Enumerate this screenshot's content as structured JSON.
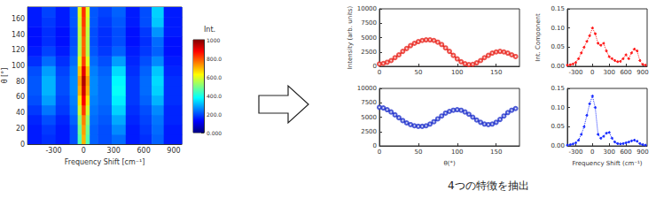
{
  "chart_data": [
    {
      "type": "heatmap",
      "xlabel": "Frequency Shift [cm⁻¹]",
      "ylabel": "θ [°]",
      "x_bins": [
        -560,
        -420,
        -280,
        -140,
        -60,
        -20,
        20,
        60,
        140,
        280,
        420,
        560,
        680,
        800,
        980
      ],
      "y_bins": [
        0,
        12.5,
        25,
        37.5,
        50,
        62.5,
        75,
        87.5,
        100,
        112.5,
        125,
        137.5,
        150,
        162.5,
        175
      ],
      "cells": [
        [
          150,
          170,
          150,
          200,
          450,
          700,
          450,
          220,
          200,
          230,
          150,
          170,
          220,
          150
        ],
        [
          150,
          180,
          150,
          200,
          480,
          720,
          480,
          220,
          200,
          260,
          150,
          180,
          230,
          150
        ],
        [
          160,
          200,
          160,
          220,
          520,
          750,
          520,
          230,
          210,
          290,
          160,
          190,
          240,
          160
        ],
        [
          180,
          240,
          180,
          240,
          580,
          820,
          580,
          240,
          220,
          330,
          170,
          200,
          260,
          160
        ],
        [
          200,
          280,
          190,
          250,
          650,
          880,
          650,
          250,
          230,
          360,
          180,
          220,
          300,
          170
        ],
        [
          210,
          300,
          200,
          260,
          700,
          920,
          700,
          260,
          230,
          380,
          180,
          230,
          330,
          170
        ],
        [
          210,
          300,
          200,
          260,
          720,
          950,
          720,
          260,
          230,
          370,
          180,
          230,
          340,
          170
        ],
        [
          200,
          280,
          190,
          250,
          680,
          900,
          680,
          250,
          220,
          340,
          170,
          220,
          320,
          160
        ],
        [
          170,
          230,
          170,
          230,
          600,
          820,
          600,
          230,
          200,
          280,
          160,
          200,
          260,
          150
        ],
        [
          150,
          190,
          150,
          210,
          550,
          780,
          550,
          210,
          180,
          220,
          150,
          180,
          220,
          140
        ],
        [
          140,
          170,
          140,
          200,
          550,
          780,
          550,
          200,
          170,
          200,
          140,
          170,
          230,
          140
        ],
        [
          140,
          170,
          140,
          200,
          560,
          800,
          560,
          200,
          170,
          200,
          140,
          180,
          270,
          150
        ],
        [
          150,
          180,
          150,
          210,
          580,
          820,
          580,
          210,
          180,
          210,
          150,
          200,
          320,
          150
        ],
        [
          150,
          190,
          150,
          210,
          600,
          830,
          600,
          210,
          190,
          220,
          150,
          200,
          330,
          150
        ]
      ],
      "xlim": [
        -560,
        980
      ],
      "xticks": [
        -300,
        0,
        300,
        600,
        900
      ],
      "ylim": [
        0,
        175
      ],
      "yticks": [
        0,
        20,
        40,
        60,
        80,
        100,
        120,
        140,
        160
      ],
      "colorbar": {
        "title": "Int.",
        "range": [
          0,
          1000
        ],
        "ticks": [
          {
            "value": 0,
            "label": "0.000"
          },
          {
            "value": 200,
            "label": "200.0"
          },
          {
            "value": 400,
            "label": "400.0"
          },
          {
            "value": 600,
            "label": "600.0"
          },
          {
            "value": 800,
            "label": "800.0"
          },
          1000
        ]
      },
      "grid": false
    },
    {
      "type": "line",
      "ylabel": "Intensity (arb. units)",
      "x": [
        0,
        5,
        10,
        15,
        20,
        25,
        30,
        35,
        40,
        45,
        50,
        55,
        60,
        65,
        70,
        75,
        80,
        85,
        90,
        95,
        100,
        105,
        110,
        115,
        120,
        125,
        130,
        135,
        140,
        145,
        150,
        155,
        160,
        165,
        170,
        175
      ],
      "series": [
        {
          "type": "scatter",
          "marker": "emptyCircle",
          "color": "#e8271f",
          "values": [
            400,
            500,
            700,
            1000,
            1500,
            2000,
            2600,
            3100,
            3600,
            4000,
            4300,
            4500,
            4600,
            4600,
            4500,
            4200,
            3800,
            3200,
            2600,
            1900,
            1300,
            800,
            450,
            300,
            350,
            600,
            1000,
            1500,
            1900,
            2300,
            2500,
            2600,
            2500,
            2300,
            2000,
            1700
          ]
        },
        {
          "type": "line",
          "line_style": "solid",
          "color": "#e8271f",
          "values": [
            380,
            480,
            690,
            1020,
            1480,
            2020,
            2580,
            3120,
            3600,
            4010,
            4300,
            4510,
            4600,
            4590,
            4480,
            4210,
            3790,
            3220,
            2590,
            1920,
            1290,
            790,
            440,
            310,
            360,
            610,
            1010,
            1490,
            1910,
            2290,
            2510,
            2590,
            2510,
            2290,
            2010,
            1690
          ]
        }
      ],
      "xlim": [
        0,
        180
      ],
      "xticks": [
        0,
        50,
        100,
        150
      ],
      "ylim": [
        0,
        10000
      ],
      "yticks": [
        0,
        2500,
        5000,
        7500,
        10000
      ],
      "grid": false
    },
    {
      "type": "line",
      "xlabel": "θ(°)",
      "x": [
        0,
        5,
        10,
        15,
        20,
        25,
        30,
        35,
        40,
        45,
        50,
        55,
        60,
        65,
        70,
        75,
        80,
        85,
        90,
        95,
        100,
        105,
        110,
        115,
        120,
        125,
        130,
        135,
        140,
        145,
        150,
        155,
        160,
        165,
        170,
        175
      ],
      "series": [
        {
          "type": "scatter",
          "marker": "emptyCircle",
          "color": "#2233cc",
          "values": [
            6700,
            6600,
            6300,
            5900,
            5400,
            4900,
            4400,
            4000,
            3700,
            3500,
            3400,
            3400,
            3500,
            3800,
            4200,
            4700,
            5200,
            5700,
            6000,
            6200,
            6300,
            6200,
            5900,
            5500,
            5000,
            4500,
            4100,
            3800,
            3700,
            3800,
            4100,
            4600,
            5200,
            5800,
            6200,
            6500
          ]
        },
        {
          "type": "line",
          "line_style": "solid",
          "color": "#2233cc",
          "values": [
            6680,
            6580,
            6310,
            5910,
            5410,
            4890,
            4410,
            3990,
            3690,
            3490,
            3390,
            3390,
            3510,
            3790,
            4210,
            4690,
            5210,
            5690,
            6010,
            6210,
            6290,
            6190,
            5910,
            5490,
            5010,
            4510,
            4090,
            3810,
            3710,
            3810,
            4110,
            4610,
            5190,
            5790,
            6210,
            6490
          ]
        }
      ],
      "xlim": [
        0,
        180
      ],
      "xticks": [
        0,
        50,
        100,
        150
      ],
      "ylim": [
        0,
        10000
      ],
      "yticks": [
        0,
        2500,
        5000,
        7500,
        10000
      ],
      "grid": false
    },
    {
      "type": "line",
      "ylabel": "Int. Component",
      "x": [
        -450,
        -400,
        -350,
        -300,
        -250,
        -200,
        -150,
        -100,
        -50,
        0,
        50,
        100,
        150,
        200,
        250,
        300,
        350,
        400,
        450,
        500,
        550,
        600,
        650,
        700,
        750,
        800,
        850,
        900,
        950
      ],
      "series": [
        {
          "type": "line",
          "marker": "circle",
          "line_style": "dotted",
          "color": "#ff1a1a",
          "values": [
            0.003,
            0.004,
            0.006,
            0.01,
            0.02,
            0.035,
            0.05,
            0.065,
            0.08,
            0.1,
            0.085,
            0.06,
            0.055,
            0.06,
            0.04,
            0.025,
            0.02,
            0.015,
            0.012,
            0.013,
            0.02,
            0.03,
            0.02,
            0.035,
            0.045,
            0.04,
            0.015,
            0.005,
            0.003
          ]
        }
      ],
      "xlim": [
        -450,
        980
      ],
      "xticks": [
        -300,
        0,
        300,
        600,
        900
      ],
      "ylim": [
        0,
        0.15
      ],
      "yticks": [
        {
          "value": 0,
          "label": "0.00"
        },
        0.05,
        {
          "value": 0.1,
          "label": "0.10"
        },
        0.15
      ],
      "grid": false
    },
    {
      "type": "line",
      "xlabel": "Frequency Shift (cm⁻¹)",
      "x": [
        -450,
        -400,
        -350,
        -300,
        -250,
        -200,
        -150,
        -100,
        -50,
        0,
        50,
        100,
        150,
        200,
        250,
        300,
        350,
        400,
        450,
        500,
        550,
        600,
        650,
        700,
        750,
        800,
        850,
        900,
        950
      ],
      "series": [
        {
          "type": "line",
          "marker": "circle",
          "line_style": "dotted",
          "color": "#1a2eff",
          "values": [
            0.002,
            0.003,
            0.005,
            0.008,
            0.015,
            0.03,
            0.05,
            0.08,
            0.11,
            0.13,
            0.1,
            0.03,
            0.02,
            0.025,
            0.033,
            0.035,
            0.02,
            0.01,
            0.006,
            0.005,
            0.006,
            0.008,
            0.01,
            0.013,
            0.015,
            0.012,
            0.006,
            0.003,
            0.002
          ]
        }
      ],
      "xlim": [
        -450,
        980
      ],
      "xticks": [
        -300,
        0,
        300,
        600,
        900
      ],
      "ylim": [
        0,
        0.15
      ],
      "yticks": [
        {
          "value": 0,
          "label": "0.00"
        },
        0.05,
        {
          "value": 0.1,
          "label": "0.10"
        },
        0.15
      ],
      "grid": false
    }
  ],
  "caption": "4つの特徴を抽出"
}
